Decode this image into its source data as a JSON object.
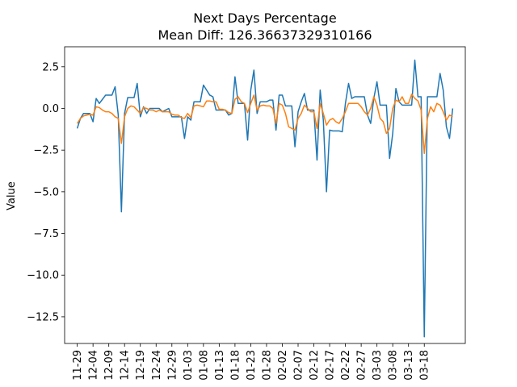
{
  "chart_data": {
    "type": "line",
    "title": "Next Days Percentage",
    "subtitle": "Mean Diff: 126.36637329310166",
    "xlabel": "",
    "ylabel": "Value",
    "ylim": [
      -14.1,
      3.7
    ],
    "yticks": [
      2.5,
      0.0,
      -2.5,
      -5.0,
      -7.5,
      -10.0,
      -12.5
    ],
    "ytick_labels": [
      "2.5",
      "0.0",
      "−2.5",
      "−5.0",
      "−7.5",
      "−10.0",
      "−12.5"
    ],
    "xtick_positions": [
      0,
      5,
      10,
      15,
      20,
      25,
      30,
      35,
      40,
      45,
      50,
      55,
      60,
      65,
      70,
      75,
      80,
      85,
      90,
      95,
      100,
      105,
      110
    ],
    "xtick_labels": [
      "11-29",
      "12-04",
      "12-09",
      "12-14",
      "12-19",
      "12-24",
      "12-29",
      "01-03",
      "01-08",
      "01-13",
      "01-18",
      "01-23",
      "01-28",
      "02-02",
      "02-07",
      "02-12",
      "02-17",
      "02-22",
      "02-27",
      "03-03",
      "03-08",
      "03-13",
      "03-18"
    ],
    "xlim": [
      -4,
      123
    ],
    "series": [
      {
        "color": "#1f77b4",
        "values": [
          -1.2,
          -0.6,
          -0.3,
          -0.3,
          -0.3,
          -0.8,
          0.6,
          0.3,
          0.55,
          0.8,
          0.8,
          0.8,
          1.3,
          -0.4,
          -6.2,
          -0.3,
          0.65,
          0.65,
          0.65,
          1.5,
          -0.5,
          0.1,
          -0.3,
          0.0,
          0.0,
          0.0,
          0.0,
          -0.2,
          -0.1,
          0.0,
          -0.5,
          -0.5,
          -0.5,
          -0.5,
          -1.8,
          -0.5,
          -0.7,
          0.4,
          0.4,
          0.4,
          1.4,
          1.1,
          0.8,
          0.7,
          -0.1,
          -0.1,
          -0.1,
          -0.1,
          -0.4,
          -0.3,
          1.9,
          0.3,
          0.3,
          0.3,
          -1.9,
          1.1,
          2.3,
          -0.3,
          0.4,
          0.4,
          0.4,
          0.5,
          0.5,
          -1.3,
          0.8,
          0.8,
          0.15,
          0.15,
          0.15,
          -2.3,
          -0.2,
          0.4,
          0.9,
          -0.1,
          -0.1,
          -0.1,
          -3.1,
          1.1,
          -0.7,
          -5.0,
          -1.3,
          -1.35,
          -1.35,
          -1.35,
          -1.4,
          0.3,
          1.5,
          0.6,
          0.7,
          0.7,
          0.7,
          0.7,
          -0.4,
          -0.9,
          0.6,
          1.6,
          0.2,
          0.2,
          0.2,
          -3.0,
          -1.5,
          1.2,
          0.4,
          0.2,
          0.2,
          0.2,
          0.2,
          2.9,
          0.7,
          0.7,
          -13.7,
          0.7,
          0.7,
          0.7,
          0.7,
          2.1,
          1.1,
          -1.1,
          -1.8,
          0.0
        ]
      },
      {
        "color": "#ff7f0e",
        "values": [
          -0.9,
          -0.6,
          -0.45,
          -0.4,
          -0.35,
          -0.4,
          0.1,
          0.05,
          -0.1,
          -0.2,
          -0.2,
          -0.3,
          -0.5,
          -0.6,
          -2.1,
          -0.5,
          0.0,
          0.15,
          0.1,
          -0.1,
          -0.3,
          0.05,
          0.0,
          -0.1,
          -0.1,
          -0.2,
          -0.1,
          -0.2,
          -0.2,
          -0.2,
          -0.35,
          -0.4,
          -0.4,
          -0.55,
          -0.6,
          -0.3,
          -0.55,
          0.15,
          0.2,
          0.15,
          0.1,
          0.45,
          0.45,
          0.4,
          0.4,
          -0.05,
          -0.05,
          -0.1,
          -0.25,
          -0.3,
          0.55,
          0.7,
          0.4,
          0.3,
          -0.25,
          0.3,
          0.8,
          -0.1,
          0.15,
          0.2,
          0.15,
          0.15,
          0.0,
          -0.9,
          0.3,
          0.2,
          -0.3,
          -1.1,
          -1.2,
          -1.3,
          -0.6,
          -0.3,
          0.2,
          0.0,
          -0.2,
          -0.2,
          -1.2,
          0.3,
          -0.3,
          -1.0,
          -0.7,
          -0.6,
          -0.8,
          -0.9,
          -0.6,
          -0.2,
          0.3,
          0.3,
          0.3,
          0.3,
          0.1,
          -0.2,
          -0.4,
          0.0,
          0.7,
          0.2,
          -0.6,
          -0.8,
          -1.5,
          -1.2,
          0.0,
          0.5,
          0.4,
          0.7,
          0.3,
          0.3,
          0.85,
          0.6,
          0.45,
          -0.1,
          -2.7,
          -0.6,
          0.1,
          -0.2,
          0.3,
          0.2,
          -0.2,
          -0.7,
          -0.4,
          -0.5
        ]
      }
    ],
    "grid": false,
    "legend": "none"
  }
}
